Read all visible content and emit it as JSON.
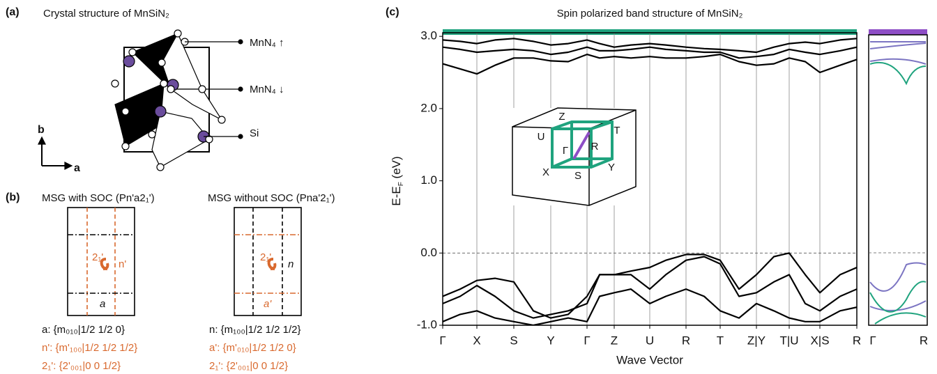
{
  "panel_a": {
    "label": "(a)",
    "title": "Crystal structure of MnSiN₂",
    "legend": [
      "MnN₄ ↑",
      "MnN₄ ↓",
      "Si"
    ],
    "axes": [
      "b",
      "a"
    ]
  },
  "panel_b": {
    "label": "(b)",
    "left": {
      "title": "MSG with SOC (Pn'a2₁')",
      "box_labels": [
        "2₁'",
        "n'",
        "a"
      ],
      "lines": [
        "a: {m₀₁₀|1/2 1/2 0}",
        "n': {m'₁₀₀|1/2 1/2 1/2}",
        "2₁': {2'₀₀₁|0 0 1/2}"
      ]
    },
    "right": {
      "title": "MSG without SOC (Pna'2₁')",
      "box_labels": [
        "2₁'",
        "n",
        "a'"
      ],
      "lines": [
        "n: {m₁₀₀|1/2 1/2 1/2}",
        "a': {m'₀₁₀|1/2 1/2 0}",
        "2₁': {2'₀₀₁|0 0 1/2}"
      ]
    }
  },
  "chart_data": {
    "type": "line",
    "label": "(c)",
    "title": "Spin polarized band structure of MnSiN₂",
    "xlabel": "Wave Vector",
    "ylabel": "E-E",
    "ylabel_sub": "F",
    "ylabel_unit": " (eV)",
    "x": [
      0,
      0.25,
      0.49,
      0.75,
      1.02,
      1.3,
      1.55,
      1.8,
      2.07,
      2.25,
      2.46,
      2.7,
      2.97,
      3.2,
      3.49,
      3.75,
      3.98,
      4.25,
      4.5,
      4.75,
      4.97,
      5.2,
      5.41,
      5.7,
      5.94
    ],
    "xlim": [
      0,
      5.94
    ],
    "xticks": [
      {
        "value": 0,
        "label": "Γ"
      },
      {
        "value": 0.49,
        "label": "X"
      },
      {
        "value": 1.02,
        "label": "S"
      },
      {
        "value": 1.55,
        "label": "Y"
      },
      {
        "value": 2.07,
        "label": "Γ"
      },
      {
        "value": 2.46,
        "label": "Z"
      },
      {
        "value": 2.97,
        "label": "U"
      },
      {
        "value": 3.49,
        "label": "R"
      },
      {
        "value": 3.98,
        "label": "T"
      },
      {
        "value": 4.5,
        "label": "Z|Y"
      },
      {
        "value": 4.97,
        "label": "T|U"
      },
      {
        "value": 5.41,
        "label": "X|S"
      },
      {
        "value": 5.94,
        "label": "R"
      }
    ],
    "ylim": [
      -1,
      3.05
    ],
    "yticks": [
      {
        "value": -1,
        "label": "-1.0"
      },
      {
        "value": 0,
        "label": "0.0"
      },
      {
        "value": 1,
        "label": "1.0"
      },
      {
        "value": 2,
        "label": "2.0"
      },
      {
        "value": 3,
        "label": "3.0"
      }
    ],
    "series": [
      {
        "color": "#000000",
        "values": [
          2.95,
          2.93,
          2.9,
          2.95,
          2.97,
          2.93,
          2.88,
          2.9,
          2.95,
          2.9,
          2.85,
          2.88,
          2.9,
          2.88,
          2.85,
          2.83,
          2.82,
          2.8,
          2.78,
          2.85,
          2.9,
          2.92,
          2.9,
          2.95,
          2.97
        ]
      },
      {
        "color": "#000000",
        "values": [
          2.85,
          2.82,
          2.78,
          2.8,
          2.82,
          2.8,
          2.75,
          2.78,
          2.85,
          2.8,
          2.8,
          2.82,
          2.85,
          2.82,
          2.8,
          2.78,
          2.78,
          2.7,
          2.72,
          2.75,
          2.82,
          2.78,
          2.75,
          2.8,
          2.85
        ]
      },
      {
        "color": "#000000",
        "values": [
          2.62,
          2.55,
          2.48,
          2.6,
          2.7,
          2.7,
          2.66,
          2.65,
          2.75,
          2.7,
          2.72,
          2.7,
          2.72,
          2.7,
          2.7,
          2.72,
          2.75,
          2.65,
          2.6,
          2.62,
          2.7,
          2.65,
          2.5,
          2.6,
          2.68
        ]
      },
      {
        "color": "#000000",
        "values": [
          -0.6,
          -0.5,
          -0.38,
          -0.35,
          -0.4,
          -0.8,
          -0.9,
          -0.85,
          -0.6,
          -0.3,
          -0.3,
          -0.25,
          -0.2,
          -0.1,
          -0.02,
          -0.02,
          -0.1,
          -0.5,
          -0.3,
          -0.05,
          0,
          -0.3,
          -0.55,
          -0.3,
          -0.2
        ]
      },
      {
        "color": "#000000",
        "values": [
          -0.7,
          -0.6,
          -0.45,
          -0.6,
          -0.8,
          -0.9,
          -0.85,
          -0.8,
          -0.7,
          -0.3,
          -0.3,
          -0.3,
          -0.5,
          -0.3,
          -0.1,
          -0.05,
          -0.15,
          -0.6,
          -0.55,
          -0.4,
          -0.3,
          -0.7,
          -0.8,
          -0.6,
          -0.5
        ]
      },
      {
        "color": "#000000",
        "values": [
          -0.95,
          -0.85,
          -0.8,
          -0.9,
          -0.95,
          -1,
          -0.95,
          -0.9,
          -0.95,
          -0.6,
          -0.55,
          -0.5,
          -0.7,
          -0.6,
          -0.5,
          -0.6,
          -0.8,
          -0.9,
          -0.7,
          -0.8,
          -0.9,
          -0.95,
          -0.95,
          -0.8,
          -0.75
        ]
      }
    ],
    "inset_labels": [
      "Z",
      "T",
      "U",
      "Γ",
      "R",
      "X",
      "S",
      "Y"
    ],
    "side_panel_labels": [
      "Γ",
      "R"
    ]
  }
}
